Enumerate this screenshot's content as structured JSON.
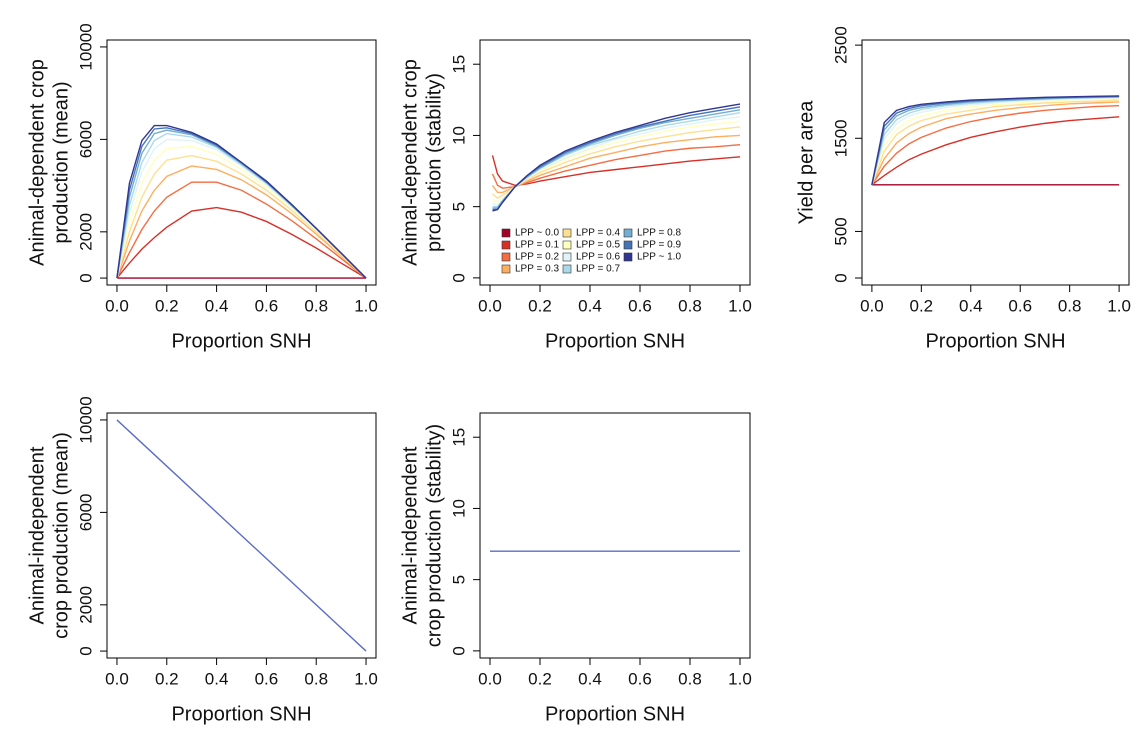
{
  "chart_data": [
    {
      "type": "line",
      "ylabel": [
        "Animal-dependent crop",
        "production (mean)"
      ],
      "xlabel": "Proportion SNH",
      "x": [
        0,
        0.05,
        0.1,
        0.15,
        0.2,
        0.3,
        0.4,
        0.5,
        0.6,
        0.7,
        0.8,
        0.9,
        1.0
      ],
      "xlim": [
        -0.04,
        1.04
      ],
      "xticks": [
        {
          "value": 0,
          "label": "0.0"
        },
        0.2,
        0.4,
        0.6,
        0.8,
        {
          "value": 1,
          "label": "1.0"
        }
      ],
      "ylim": [
        -300,
        10300
      ],
      "yticks": [
        0,
        2000,
        6000,
        10000
      ],
      "series": [
        {
          "color": "#a50026",
          "values": [
            0,
            0,
            0,
            0,
            0,
            0,
            0,
            0,
            0,
            0,
            0,
            0,
            0
          ]
        },
        {
          "color": "#d73027",
          "values": [
            0,
            650,
            1250,
            1750,
            2200,
            2900,
            3050,
            2850,
            2450,
            1900,
            1300,
            650,
            0
          ]
        },
        {
          "color": "#f46d43",
          "values": [
            0,
            1100,
            2100,
            2900,
            3500,
            4150,
            4150,
            3800,
            3200,
            2500,
            1700,
            850,
            0
          ]
        },
        {
          "color": "#fdae61",
          "values": [
            0,
            1600,
            2900,
            3800,
            4400,
            4850,
            4700,
            4250,
            3600,
            2800,
            1900,
            950,
            0
          ]
        },
        {
          "color": "#fee090",
          "values": [
            0,
            2000,
            3500,
            4500,
            5100,
            5300,
            5050,
            4500,
            3800,
            2950,
            2000,
            1000,
            0
          ]
        },
        {
          "color": "#ffffbf",
          "values": [
            0,
            2400,
            4100,
            5100,
            5600,
            5700,
            5350,
            4700,
            3950,
            3050,
            2100,
            1050,
            0
          ]
        },
        {
          "color": "#e0f3f8",
          "values": [
            0,
            2800,
            4600,
            5600,
            6000,
            5950,
            5550,
            4850,
            4050,
            3100,
            2100,
            1050,
            0
          ]
        },
        {
          "color": "#abd9e9",
          "values": [
            0,
            3150,
            5000,
            5950,
            6250,
            6100,
            5650,
            4900,
            4100,
            3150,
            2150,
            1080,
            0
          ]
        },
        {
          "color": "#74add1",
          "values": [
            0,
            3500,
            5400,
            6250,
            6400,
            6200,
            5700,
            4950,
            4150,
            3150,
            2150,
            1080,
            0
          ]
        },
        {
          "color": "#4575b4",
          "values": [
            0,
            3800,
            5700,
            6450,
            6500,
            6250,
            5750,
            5000,
            4150,
            3200,
            2150,
            1080,
            0
          ]
        },
        {
          "color": "#313695",
          "values": [
            0,
            4100,
            5950,
            6600,
            6600,
            6300,
            5800,
            5000,
            4200,
            3200,
            2150,
            1080,
            0
          ]
        }
      ]
    },
    {
      "type": "line",
      "ylabel": [
        "Animal-dependent crop",
        "production (stability)"
      ],
      "xlabel": "Proportion SNH",
      "x": [
        0.01,
        0.03,
        0.05,
        0.1,
        0.15,
        0.2,
        0.3,
        0.4,
        0.5,
        0.6,
        0.7,
        0.8,
        0.9,
        1.0
      ],
      "xlim": [
        -0.04,
        1.04
      ],
      "xticks": [
        {
          "value": 0,
          "label": "0.0"
        },
        0.2,
        0.4,
        0.6,
        0.8,
        {
          "value": 1,
          "label": "1.0"
        }
      ],
      "ylim": [
        -0.5,
        16.7
      ],
      "yticks": [
        0,
        5,
        10,
        15
      ],
      "legend": "bottom",
      "series": [
        {
          "name": "LPP ~ 0.0",
          "color": "#a50026",
          "values": [
            null,
            null,
            null,
            null,
            null,
            null,
            null,
            null,
            null,
            null,
            null,
            null,
            null,
            null
          ]
        },
        {
          "name": "LPP = 0.1",
          "color": "#d73027",
          "values": [
            8.6,
            7.3,
            6.8,
            6.5,
            6.6,
            6.8,
            7.1,
            7.4,
            7.6,
            7.8,
            8.0,
            8.2,
            8.35,
            8.5
          ]
        },
        {
          "name": "LPP = 0.2",
          "color": "#f46d43",
          "values": [
            7.3,
            6.5,
            6.3,
            6.4,
            6.7,
            7.0,
            7.5,
            7.9,
            8.3,
            8.6,
            8.9,
            9.1,
            9.2,
            9.35
          ]
        },
        {
          "name": "LPP = 0.3",
          "color": "#fdae61",
          "values": [
            6.5,
            6.0,
            6.0,
            6.4,
            6.8,
            7.2,
            7.8,
            8.4,
            8.8,
            9.2,
            9.5,
            9.7,
            9.9,
            10.0
          ]
        },
        {
          "name": "LPP = 0.4",
          "color": "#fee090",
          "values": [
            5.9,
            5.6,
            5.8,
            6.4,
            6.9,
            7.4,
            8.1,
            8.7,
            9.2,
            9.6,
            9.9,
            10.2,
            10.4,
            10.6
          ]
        },
        {
          "name": "LPP = 0.5",
          "color": "#ffffbf",
          "values": [
            5.5,
            5.3,
            5.6,
            6.4,
            7.0,
            7.5,
            8.3,
            9.0,
            9.5,
            9.9,
            10.3,
            10.6,
            10.8,
            11.0
          ]
        },
        {
          "name": "LPP = 0.6",
          "color": "#e0f3f8",
          "values": [
            5.2,
            5.1,
            5.5,
            6.4,
            7.0,
            7.6,
            8.4,
            9.1,
            9.7,
            10.1,
            10.5,
            10.8,
            11.1,
            11.3
          ]
        },
        {
          "name": "LPP = 0.7",
          "color": "#abd9e9",
          "values": [
            5.0,
            5.0,
            5.4,
            6.4,
            7.1,
            7.7,
            8.6,
            9.3,
            9.8,
            10.3,
            10.7,
            11.0,
            11.3,
            11.6
          ]
        },
        {
          "name": "LPP = 0.8",
          "color": "#74add1",
          "values": [
            4.9,
            4.9,
            5.4,
            6.4,
            7.1,
            7.7,
            8.7,
            9.4,
            10.0,
            10.5,
            10.9,
            11.2,
            11.5,
            11.8
          ]
        },
        {
          "name": "LPP = 0.9",
          "color": "#4575b4",
          "values": [
            4.8,
            4.8,
            5.3,
            6.4,
            7.2,
            7.8,
            8.8,
            9.5,
            10.1,
            10.6,
            11.0,
            11.4,
            11.7,
            12.0
          ]
        },
        {
          "name": "LPP ~ 1.0",
          "color": "#313695",
          "values": [
            4.7,
            4.8,
            5.3,
            6.4,
            7.2,
            7.9,
            8.9,
            9.6,
            10.2,
            10.7,
            11.2,
            11.6,
            11.9,
            12.2
          ]
        }
      ]
    },
    {
      "type": "line",
      "ylabel": [
        "Yield per area"
      ],
      "xlabel": "Proportion SNH",
      "x": [
        0,
        0.05,
        0.1,
        0.15,
        0.2,
        0.3,
        0.4,
        0.5,
        0.6,
        0.7,
        0.8,
        0.9,
        1.0
      ],
      "xlim": [
        -0.04,
        1.04
      ],
      "xticks": [
        {
          "value": 0,
          "label": "0.0"
        },
        0.2,
        0.4,
        0.6,
        0.8,
        {
          "value": 1,
          "label": "1.0"
        }
      ],
      "ylim": [
        -75,
        2555
      ],
      "yticks": [
        0,
        500,
        1500,
        2500
      ],
      "series": [
        {
          "color": "#a50026",
          "values": [
            1000,
            1000,
            1000,
            1000,
            1000,
            1000,
            1000,
            1000,
            1000,
            1000,
            1000,
            1000,
            1000
          ]
        },
        {
          "color": "#d73027",
          "values": [
            1000,
            1100,
            1190,
            1270,
            1330,
            1430,
            1510,
            1570,
            1620,
            1660,
            1690,
            1710,
            1730
          ]
        },
        {
          "color": "#f46d43",
          "values": [
            1000,
            1200,
            1340,
            1440,
            1510,
            1610,
            1680,
            1730,
            1770,
            1800,
            1820,
            1840,
            1850
          ]
        },
        {
          "color": "#fdae61",
          "values": [
            1000,
            1280,
            1450,
            1550,
            1620,
            1710,
            1760,
            1800,
            1830,
            1850,
            1870,
            1880,
            1890
          ]
        },
        {
          "color": "#fee090",
          "values": [
            1000,
            1360,
            1540,
            1630,
            1690,
            1760,
            1800,
            1840,
            1860,
            1880,
            1890,
            1900,
            1910
          ]
        },
        {
          "color": "#ffffbf",
          "values": [
            1000,
            1430,
            1600,
            1690,
            1740,
            1800,
            1840,
            1860,
            1880,
            1900,
            1910,
            1920,
            1925
          ]
        },
        {
          "color": "#e0f3f8",
          "values": [
            1000,
            1490,
            1660,
            1740,
            1780,
            1830,
            1860,
            1880,
            1900,
            1910,
            1920,
            1930,
            1935
          ]
        },
        {
          "color": "#abd9e9",
          "values": [
            1000,
            1540,
            1700,
            1770,
            1810,
            1850,
            1875,
            1895,
            1910,
            1920,
            1930,
            1935,
            1940
          ]
        },
        {
          "color": "#74add1",
          "values": [
            1000,
            1590,
            1740,
            1800,
            1830,
            1865,
            1890,
            1905,
            1915,
            1925,
            1935,
            1940,
            1945
          ]
        },
        {
          "color": "#4575b4",
          "values": [
            1000,
            1630,
            1770,
            1820,
            1850,
            1880,
            1900,
            1915,
            1925,
            1935,
            1940,
            1945,
            1950
          ]
        },
        {
          "color": "#313695",
          "values": [
            1000,
            1670,
            1800,
            1840,
            1865,
            1890,
            1910,
            1920,
            1930,
            1940,
            1945,
            1950,
            1955
          ]
        }
      ]
    },
    {
      "type": "line",
      "ylabel": [
        "Animal-independent",
        "crop production (mean)"
      ],
      "xlabel": "Proportion SNH",
      "x": [
        0,
        1.0
      ],
      "xlim": [
        -0.04,
        1.04
      ],
      "xticks": [
        {
          "value": 0,
          "label": "0.0"
        },
        0.2,
        0.4,
        0.6,
        0.8,
        {
          "value": 1,
          "label": "1.0"
        }
      ],
      "ylim": [
        -300,
        10300
      ],
      "yticks": [
        0,
        2000,
        6000,
        10000
      ],
      "series": [
        {
          "color": "#5b6cc8",
          "values": [
            10000,
            0
          ]
        }
      ]
    },
    {
      "type": "line",
      "ylabel": [
        "Animal-independent",
        "crop production (stability)"
      ],
      "xlabel": "Proportion SNH",
      "x": [
        0,
        1.0
      ],
      "xlim": [
        -0.04,
        1.04
      ],
      "xticks": [
        {
          "value": 0,
          "label": "0.0"
        },
        0.2,
        0.4,
        0.6,
        0.8,
        {
          "value": 1,
          "label": "1.0"
        }
      ],
      "ylim": [
        -0.5,
        16.7
      ],
      "yticks": [
        0,
        5,
        10,
        15
      ],
      "series": [
        {
          "color": "#5b6cc8",
          "values": [
            7,
            7
          ]
        }
      ]
    }
  ]
}
